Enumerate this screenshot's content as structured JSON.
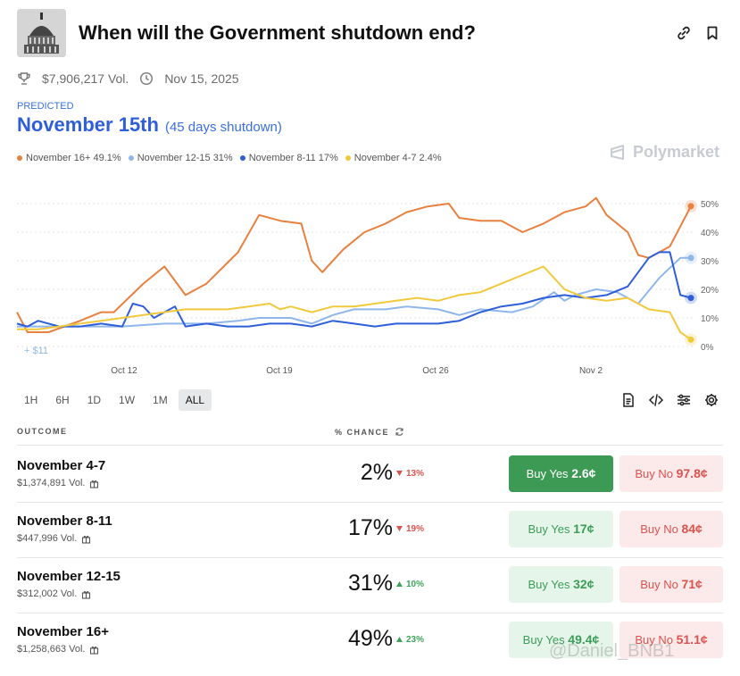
{
  "header": {
    "title": "When will the Government shutdown end?",
    "thumbnail_icon": "capitol-building-icon",
    "link_icon": "link-icon",
    "bookmark_icon": "bookmark-icon"
  },
  "meta": {
    "volume": "$7,906,217 Vol.",
    "date": "Nov 15, 2025"
  },
  "prediction": {
    "label": "PREDICTED",
    "value": "November 15th",
    "detail": "(45 days shutdown)"
  },
  "brand": {
    "name": "Polymarket"
  },
  "colors": {
    "orange": "#e8803f",
    "lightblue": "#8fb7ea",
    "blue": "#2f5fd8",
    "yellow": "#f0c93c",
    "yes_green": "#3d9a55",
    "no_red": "#d9534f"
  },
  "chart_data": {
    "type": "line",
    "x_ticks": [
      "Oct 12",
      "Oct 19",
      "Oct 26",
      "Nov 2"
    ],
    "y_ticks": [
      "50%",
      "40%",
      "30%",
      "20%",
      "10%",
      "0%"
    ],
    "ylim": [
      0,
      55
    ],
    "annotation": "+ $11",
    "series": [
      {
        "name": "November 16+",
        "legend": "November 16+ 49.1%",
        "color": "#e8803f",
        "values": [
          [
            1,
            12
          ],
          [
            1.5,
            5
          ],
          [
            2.5,
            5
          ],
          [
            4,
            9
          ],
          [
            5,
            12
          ],
          [
            5.6,
            12
          ],
          [
            7,
            22
          ],
          [
            8,
            28
          ],
          [
            9,
            18
          ],
          [
            10,
            22
          ],
          [
            11.5,
            33
          ],
          [
            12.5,
            46
          ],
          [
            13.5,
            44
          ],
          [
            14.5,
            43
          ],
          [
            15,
            30
          ],
          [
            15.5,
            26
          ],
          [
            16.5,
            34
          ],
          [
            17.5,
            40
          ],
          [
            18.5,
            43
          ],
          [
            19.5,
            47
          ],
          [
            20.5,
            49
          ],
          [
            21.5,
            50
          ],
          [
            22,
            45
          ],
          [
            23,
            44
          ],
          [
            24,
            44
          ],
          [
            25,
            40
          ],
          [
            26,
            43
          ],
          [
            27,
            47
          ],
          [
            28,
            49
          ],
          [
            28.5,
            52
          ],
          [
            29,
            46
          ],
          [
            30,
            40
          ],
          [
            30.5,
            32
          ],
          [
            31,
            31
          ],
          [
            32,
            35
          ],
          [
            33,
            49.1
          ]
        ]
      },
      {
        "name": "November 12-15",
        "legend": "November 12-15 31%",
        "color": "#8fb7ea",
        "values": [
          [
            1,
            7
          ],
          [
            4,
            7
          ],
          [
            6,
            7
          ],
          [
            8,
            8
          ],
          [
            10,
            8
          ],
          [
            11.5,
            9
          ],
          [
            12.5,
            10
          ],
          [
            14,
            10
          ],
          [
            15,
            8
          ],
          [
            16,
            11
          ],
          [
            17,
            13
          ],
          [
            18.5,
            13
          ],
          [
            19.5,
            14
          ],
          [
            21,
            13
          ],
          [
            22,
            11
          ],
          [
            23,
            13
          ],
          [
            24.5,
            12
          ],
          [
            25.5,
            14
          ],
          [
            26.5,
            19
          ],
          [
            27,
            16
          ],
          [
            27.5,
            18
          ],
          [
            28.5,
            20
          ],
          [
            29.5,
            19
          ],
          [
            30.5,
            15
          ],
          [
            31.5,
            24
          ],
          [
            32.5,
            31
          ],
          [
            33,
            31
          ]
        ]
      },
      {
        "name": "November 8-11",
        "legend": "November 8-11 17%",
        "color": "#2f5fd8",
        "values": [
          [
            1,
            8
          ],
          [
            1.5,
            7
          ],
          [
            2,
            9
          ],
          [
            3,
            7
          ],
          [
            4,
            7
          ],
          [
            5,
            8
          ],
          [
            6,
            7
          ],
          [
            6.5,
            15
          ],
          [
            7,
            14
          ],
          [
            7.5,
            10
          ],
          [
            8.5,
            14
          ],
          [
            9,
            7
          ],
          [
            10,
            8
          ],
          [
            11,
            7
          ],
          [
            12,
            7
          ],
          [
            13,
            8
          ],
          [
            14,
            8
          ],
          [
            15,
            7
          ],
          [
            16,
            9
          ],
          [
            17,
            8
          ],
          [
            18,
            7
          ],
          [
            19,
            8
          ],
          [
            20,
            8
          ],
          [
            21,
            8
          ],
          [
            22,
            9
          ],
          [
            23,
            12
          ],
          [
            24,
            14
          ],
          [
            25,
            15
          ],
          [
            26,
            17
          ],
          [
            27,
            18
          ],
          [
            28,
            17
          ],
          [
            29,
            18
          ],
          [
            30,
            21
          ],
          [
            31,
            31
          ],
          [
            31.5,
            33
          ],
          [
            32,
            33
          ],
          [
            32.5,
            18
          ],
          [
            33,
            17
          ]
        ]
      },
      {
        "name": "November 4-7",
        "legend": "November 4-7 2.4%",
        "color": "#f0c93c",
        "values": [
          [
            1,
            6
          ],
          [
            2,
            6
          ],
          [
            3,
            7
          ],
          [
            4,
            8
          ],
          [
            5,
            9
          ],
          [
            6,
            10
          ],
          [
            7,
            11
          ],
          [
            8,
            12
          ],
          [
            9,
            13
          ],
          [
            10,
            13
          ],
          [
            11,
            13
          ],
          [
            12,
            14
          ],
          [
            13,
            15
          ],
          [
            13.5,
            13
          ],
          [
            14,
            14
          ],
          [
            15,
            12
          ],
          [
            16,
            14
          ],
          [
            17,
            14
          ],
          [
            18,
            15
          ],
          [
            19,
            16
          ],
          [
            20,
            17
          ],
          [
            21,
            16
          ],
          [
            22,
            18
          ],
          [
            23,
            19
          ],
          [
            24,
            22
          ],
          [
            25,
            25
          ],
          [
            26,
            28
          ],
          [
            27,
            20
          ],
          [
            28,
            17
          ],
          [
            29,
            16
          ],
          [
            30,
            17
          ],
          [
            31,
            13
          ],
          [
            32,
            12
          ],
          [
            32.5,
            5
          ],
          [
            33,
            2.4
          ]
        ]
      }
    ]
  },
  "ranges": [
    "1H",
    "6H",
    "1D",
    "1W",
    "1M",
    "ALL"
  ],
  "active_range": "ALL",
  "tools": [
    "document-icon",
    "code-icon",
    "sliders-icon",
    "gear-icon"
  ],
  "table": {
    "outcome_header": "OUTCOME",
    "chance_header": "% CHANCE",
    "rows": [
      {
        "name": "November 4-7",
        "volume": "$1,374,891 Vol.",
        "chance": "2%",
        "delta": "13%",
        "direction": "down",
        "yes_label": "Buy Yes",
        "yes_price": "2.6¢",
        "no_label": "Buy No",
        "no_price": "97.8¢",
        "yes_solid": true
      },
      {
        "name": "November 8-11",
        "volume": "$447,996 Vol.",
        "chance": "17%",
        "delta": "19%",
        "direction": "down",
        "yes_label": "Buy Yes",
        "yes_price": "17¢",
        "no_label": "Buy No",
        "no_price": "84¢",
        "yes_solid": false
      },
      {
        "name": "November 12-15",
        "volume": "$312,002 Vol.",
        "chance": "31%",
        "delta": "10%",
        "direction": "up",
        "yes_label": "Buy Yes",
        "yes_price": "32¢",
        "no_label": "Buy No",
        "no_price": "71¢",
        "yes_solid": false
      },
      {
        "name": "November 16+",
        "volume": "$1,258,663 Vol.",
        "chance": "49%",
        "delta": "23%",
        "direction": "up",
        "yes_label": "Buy Yes",
        "yes_price": "49.4¢",
        "no_label": "Buy No",
        "no_price": "51.1¢",
        "yes_solid": false
      }
    ]
  },
  "watermark": "@Daniel_BNB1"
}
